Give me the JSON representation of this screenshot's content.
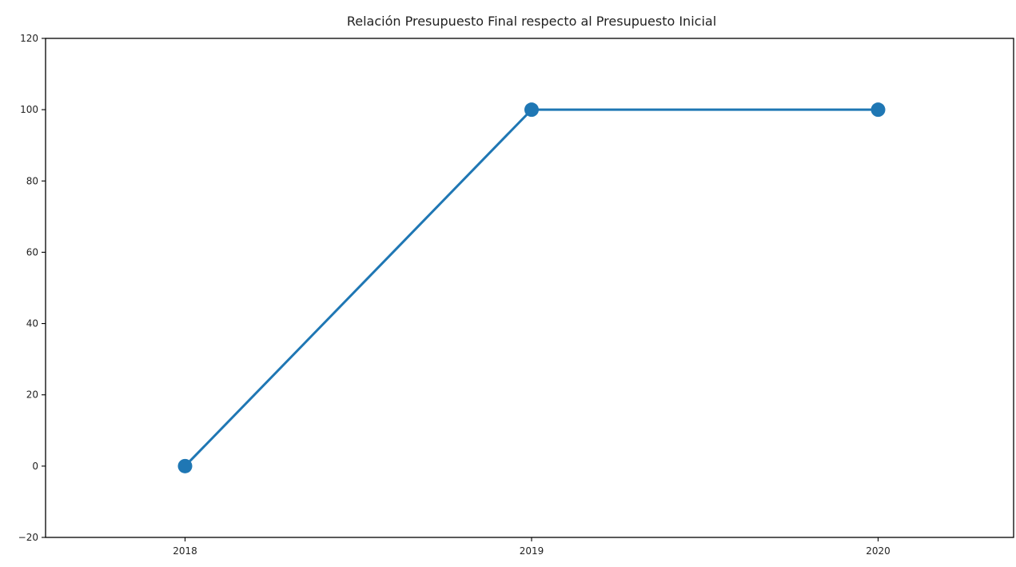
{
  "chart_data": {
    "type": "line",
    "title": "Relación Presupuesto Final respecto al Presupuesto Inicial",
    "xlabel": "",
    "ylabel": "",
    "categories": [
      "2018",
      "2019",
      "2020"
    ],
    "series": [
      {
        "values": [
          0,
          100,
          100
        ],
        "color": "#1f77b4"
      }
    ],
    "ylim": [
      -20,
      120
    ],
    "yticks": [
      -20,
      0,
      20,
      40,
      60,
      80,
      100,
      120
    ],
    "yticks_labels": [
      "−20",
      "0",
      "20",
      "40",
      "60",
      "80",
      "100",
      "120"
    ],
    "grid": false,
    "legend": "none"
  }
}
